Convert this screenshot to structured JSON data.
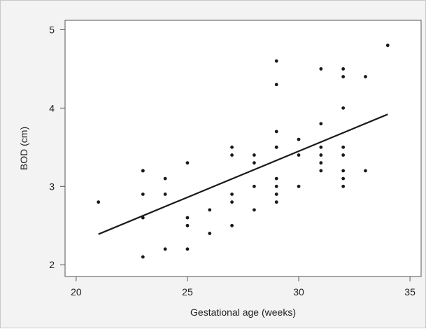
{
  "chart_data": {
    "type": "scatter",
    "title": "",
    "xlabel": "Gestational age (weeks)",
    "ylabel": "BOD (cm)",
    "xlim": [
      19.5,
      35.5
    ],
    "ylim": [
      1.85,
      5.12
    ],
    "xticks": [
      20,
      25,
      30,
      35
    ],
    "yticks": [
      2,
      3,
      4,
      5
    ],
    "grid": false,
    "legend": "none",
    "colors": {
      "points": "#1a1a1a",
      "line": "#1a1a1a",
      "plot_bg": "#ffffff",
      "figure_bg": "#f3f3f3"
    },
    "points": [
      [
        21,
        2.8
      ],
      [
        23,
        3.2
      ],
      [
        23,
        3.2
      ],
      [
        23,
        2.9
      ],
      [
        23,
        2.6
      ],
      [
        23,
        2.1
      ],
      [
        24,
        3.1
      ],
      [
        24,
        2.9
      ],
      [
        24,
        2.2
      ],
      [
        25,
        3.3
      ],
      [
        25,
        2.6
      ],
      [
        25,
        2.5
      ],
      [
        25,
        2.2
      ],
      [
        26,
        2.7
      ],
      [
        26,
        2.4
      ],
      [
        27,
        3.5
      ],
      [
        27,
        3.4
      ],
      [
        27,
        2.9
      ],
      [
        27,
        2.8
      ],
      [
        27,
        2.5
      ],
      [
        28,
        3.4
      ],
      [
        28,
        3.3
      ],
      [
        28,
        3.0
      ],
      [
        28,
        2.7
      ],
      [
        29,
        4.6
      ],
      [
        29,
        4.3
      ],
      [
        29,
        3.7
      ],
      [
        29,
        3.5
      ],
      [
        29,
        3.5
      ],
      [
        29,
        3.1
      ],
      [
        29,
        3.0
      ],
      [
        29,
        2.9
      ],
      [
        29,
        2.8
      ],
      [
        30,
        3.6
      ],
      [
        30,
        3.4
      ],
      [
        30,
        3.0
      ],
      [
        31,
        4.5
      ],
      [
        31,
        3.8
      ],
      [
        31,
        3.5
      ],
      [
        31,
        3.4
      ],
      [
        31,
        3.3
      ],
      [
        31,
        3.2
      ],
      [
        32,
        4.5
      ],
      [
        32,
        4.4
      ],
      [
        32,
        4.0
      ],
      [
        32,
        3.5
      ],
      [
        32,
        3.4
      ],
      [
        32,
        3.2
      ],
      [
        32,
        3.1
      ],
      [
        32,
        3.0
      ],
      [
        33,
        4.4
      ],
      [
        33,
        3.2
      ],
      [
        34,
        4.8
      ]
    ],
    "fit_line": {
      "x": [
        21,
        34
      ],
      "y": [
        2.39,
        3.92
      ]
    }
  }
}
